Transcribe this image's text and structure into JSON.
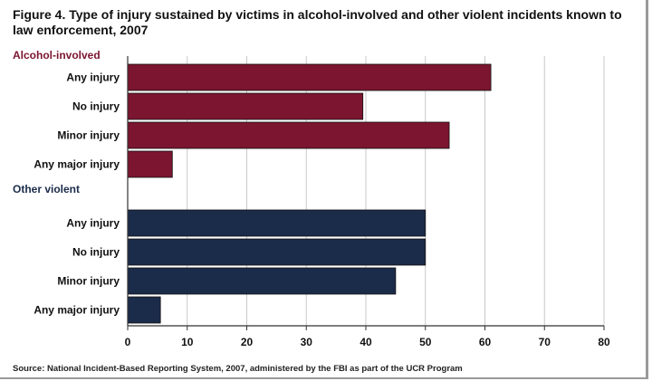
{
  "figure": {
    "title": "Figure 4. Type of injury sustained by victims in alcohol-involved and other violent incidents known to law enforcement, 2007",
    "source": "Source: National Incident-Based Reporting System, 2007, administered by the FBI as part of the UCR Program"
  },
  "chart_data": {
    "type": "bar",
    "orientation": "horizontal",
    "xlim": [
      0,
      80
    ],
    "xticks": [
      0,
      10,
      20,
      30,
      40,
      50,
      60,
      70,
      80
    ],
    "grid": true,
    "groups": [
      {
        "name": "Alcohol-involved",
        "color": "#7b1530",
        "categories": [
          "Any injury",
          "No injury",
          "Minor injury",
          "Any major injury"
        ],
        "values": [
          61,
          39.5,
          54,
          7.5
        ]
      },
      {
        "name": "Other violent",
        "color": "#1b2b4a",
        "categories": [
          "Any injury",
          "No injury",
          "Minor injury",
          "Any major injury"
        ],
        "values": [
          50,
          50,
          45,
          5.5
        ]
      }
    ]
  }
}
